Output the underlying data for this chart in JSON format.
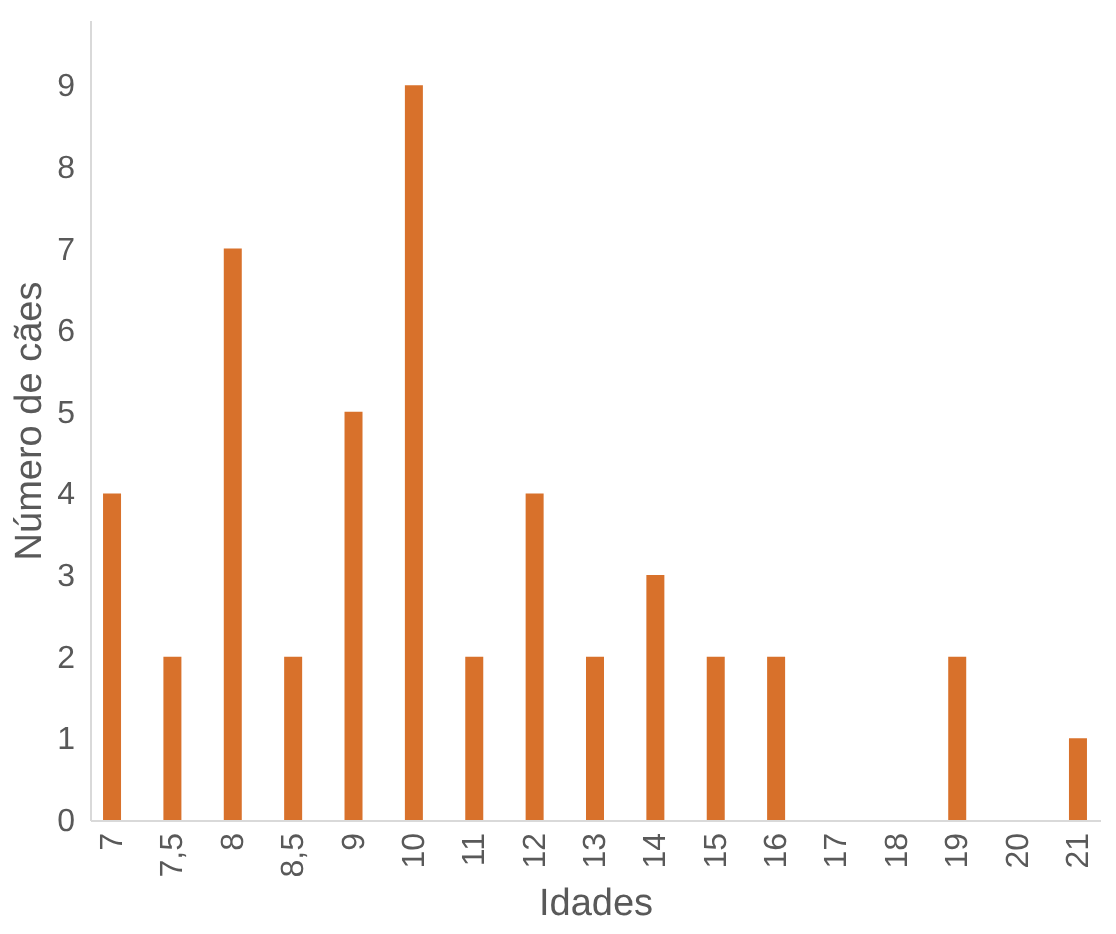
{
  "chart_data": {
    "type": "bar",
    "xlabel": "Idades",
    "ylabel": "Número de cães",
    "categories": [
      "7",
      "7,5",
      "8",
      "8,5",
      "9",
      "10",
      "11",
      "12",
      "13",
      "14",
      "15",
      "16",
      "17",
      "18",
      "19",
      "20",
      "21"
    ],
    "values": [
      4,
      2,
      7,
      2,
      5,
      9,
      2,
      4,
      2,
      3,
      2,
      2,
      0,
      0,
      2,
      0,
      1
    ],
    "color": "#d8712b",
    "ylim": [
      0,
      9.8
    ],
    "yticks": [
      0,
      1,
      2,
      3,
      4,
      5,
      6,
      7,
      8,
      9
    ],
    "grid": false
  }
}
